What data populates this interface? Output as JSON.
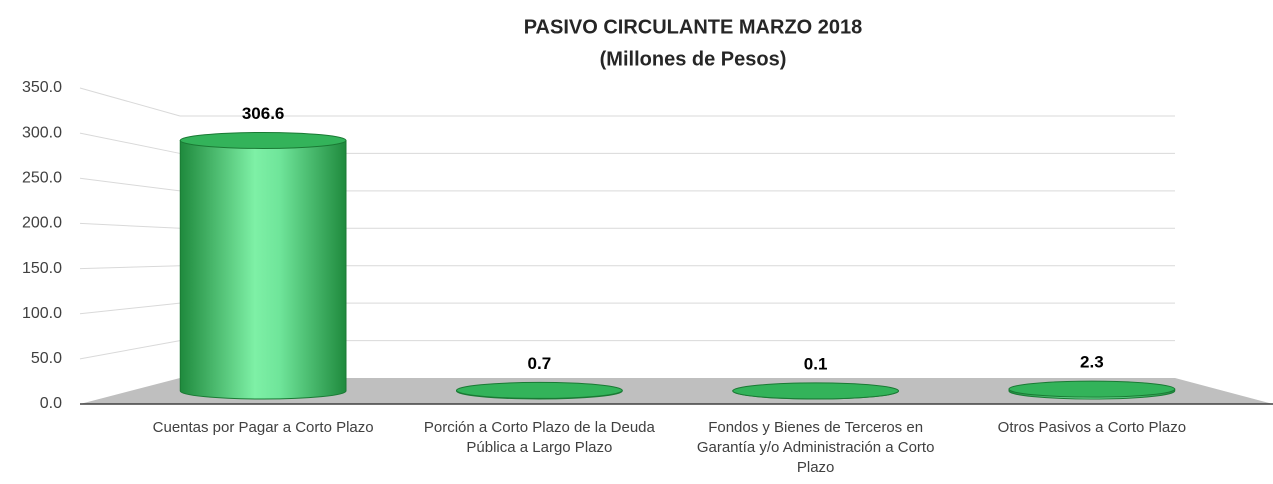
{
  "chart_data": {
    "type": "bar3d",
    "title": "PASIVO CIRCULANTE MARZO 2018",
    "subtitle": "(Millones de Pesos)",
    "categories": [
      "Cuentas por Pagar a Corto Plazo",
      "Porción a Corto Plazo de la Deuda Pública a Largo Plazo",
      "Fondos y Bienes de Terceros en Garantía y/o Administración a Corto Plazo",
      "Otros Pasivos a Corto Plazo"
    ],
    "values": [
      306.6,
      0.7,
      0.1,
      2.3
    ],
    "color": "#33b35a",
    "ylim": [
      0,
      350
    ],
    "yticks": [
      {
        "value": 0,
        "label": "0.0"
      },
      {
        "value": 50,
        "label": "50.0"
      },
      {
        "value": 100,
        "label": "100.0"
      },
      {
        "value": 150,
        "label": "150.0"
      },
      {
        "value": 200,
        "label": "200.0"
      },
      {
        "value": 250,
        "label": "250.0"
      },
      {
        "value": 300,
        "label": "300.0"
      },
      {
        "value": 350,
        "label": "350.0"
      }
    ],
    "grid": true
  }
}
